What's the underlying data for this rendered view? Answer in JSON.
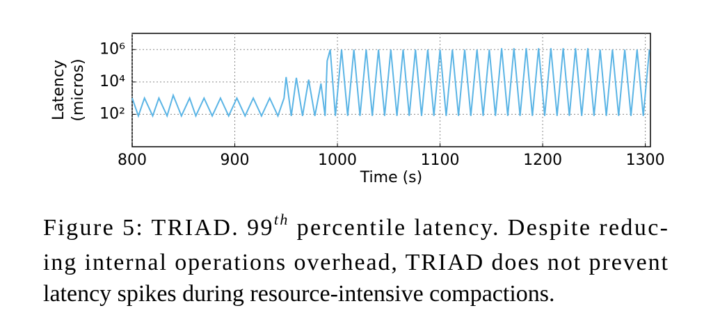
{
  "chart_data": {
    "type": "line",
    "x_label": "Time (s)",
    "y_label": [
      "Latency",
      "(micros)"
    ],
    "log_y": true,
    "grid": true,
    "xlim": [
      800,
      1305
    ],
    "ylim": [
      1,
      10000000
    ],
    "xticks": [
      800,
      900,
      1000,
      1100,
      1200,
      1300
    ],
    "yticks": [
      {
        "value": 100,
        "label": "10²"
      },
      {
        "value": 10000,
        "label": "10⁴"
      },
      {
        "value": 1000000,
        "label": "10⁶"
      }
    ],
    "series": [
      {
        "name": "latency",
        "color": "#5ab4e5",
        "x": [
          800,
          806,
          812,
          820,
          826,
          834,
          840,
          848,
          856,
          862,
          870,
          878,
          886,
          894,
          902,
          910,
          918,
          926,
          934,
          942,
          948,
          950,
          955,
          960,
          966,
          972,
          978,
          984,
          988,
          990,
          993,
          998,
          1004,
          1010,
          1016,
          1022,
          1028,
          1034,
          1040,
          1046,
          1052,
          1058,
          1064,
          1070,
          1076,
          1082,
          1088,
          1094,
          1100,
          1106,
          1112,
          1118,
          1124,
          1130,
          1136,
          1142,
          1148,
          1154,
          1160,
          1166,
          1172,
          1178,
          1184,
          1190,
          1196,
          1202,
          1208,
          1214,
          1220,
          1226,
          1232,
          1238,
          1244,
          1250,
          1256,
          1262,
          1268,
          1274,
          1280,
          1286,
          1292,
          1298,
          1304
        ],
        "values": [
          1000,
          80,
          1000,
          80,
          1000,
          80,
          1500,
          80,
          1000,
          80,
          1000,
          80,
          1000,
          80,
          1000,
          80,
          1000,
          80,
          1000,
          80,
          1000,
          20000,
          80,
          18000,
          80,
          14000,
          80,
          8000,
          80,
          200000,
          1000000,
          80,
          1000000,
          80,
          1000000,
          80,
          1000000,
          80,
          1000000,
          80,
          1000000,
          80,
          1000000,
          80,
          1000000,
          80,
          1000000,
          80,
          1000000,
          80,
          1000000,
          80,
          1000000,
          80,
          1000000,
          80,
          1000000,
          80,
          1200000,
          80,
          1200000,
          80,
          1200000,
          80,
          1200000,
          80,
          1200000,
          80,
          1200000,
          80,
          1200000,
          80,
          1200000,
          80,
          1000000,
          80,
          1000000,
          80,
          1000000,
          80,
          1000000,
          80,
          1000000
        ]
      }
    ]
  },
  "caption": [
    [
      "Figure 5: TRIAD. 99",
      "th",
      " percentile latency.  Despite reduc-"
    ],
    [
      "ing internal operations overhead, TRIAD does not prevent"
    ],
    [
      "latency spikes during resource-intensive compactions."
    ]
  ]
}
